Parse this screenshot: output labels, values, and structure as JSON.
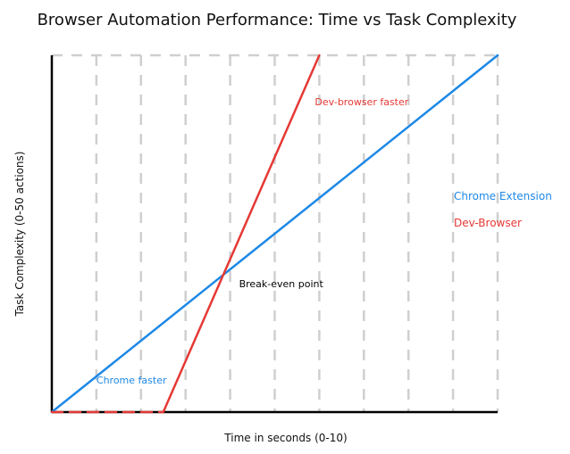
{
  "chart_data": {
    "type": "line",
    "title": "Browser Automation Performance: Time vs Task Complexity",
    "xlabel": "Time in seconds (0-10)",
    "ylabel": "Task Complexity (0-50 actions)",
    "xlim": [
      0,
      10
    ],
    "ylim": [
      0,
      50
    ],
    "grid": "vertical dashed",
    "legend_placement": "right",
    "series": [
      {
        "name": "Chrome Extension",
        "color": "#1e88e5",
        "points": [
          [
            0,
            0
          ],
          [
            10,
            50
          ]
        ]
      },
      {
        "name": "Dev-Browser",
        "color": "#e53935",
        "points": [
          [
            0,
            0
          ],
          [
            2.5,
            0
          ],
          [
            6.0,
            50
          ]
        ],
        "dashed_until": 2.5
      }
    ],
    "annotations": [
      {
        "text": "Dev-browser faster",
        "color": "#e53935",
        "x": 5.9,
        "y": 43
      },
      {
        "text": "Break-even point",
        "color": "#000000",
        "x": 4.2,
        "y": 17.5
      },
      {
        "text": "Chrome faster",
        "color": "#1e88e5",
        "x": 1.0,
        "y": 4
      }
    ]
  }
}
